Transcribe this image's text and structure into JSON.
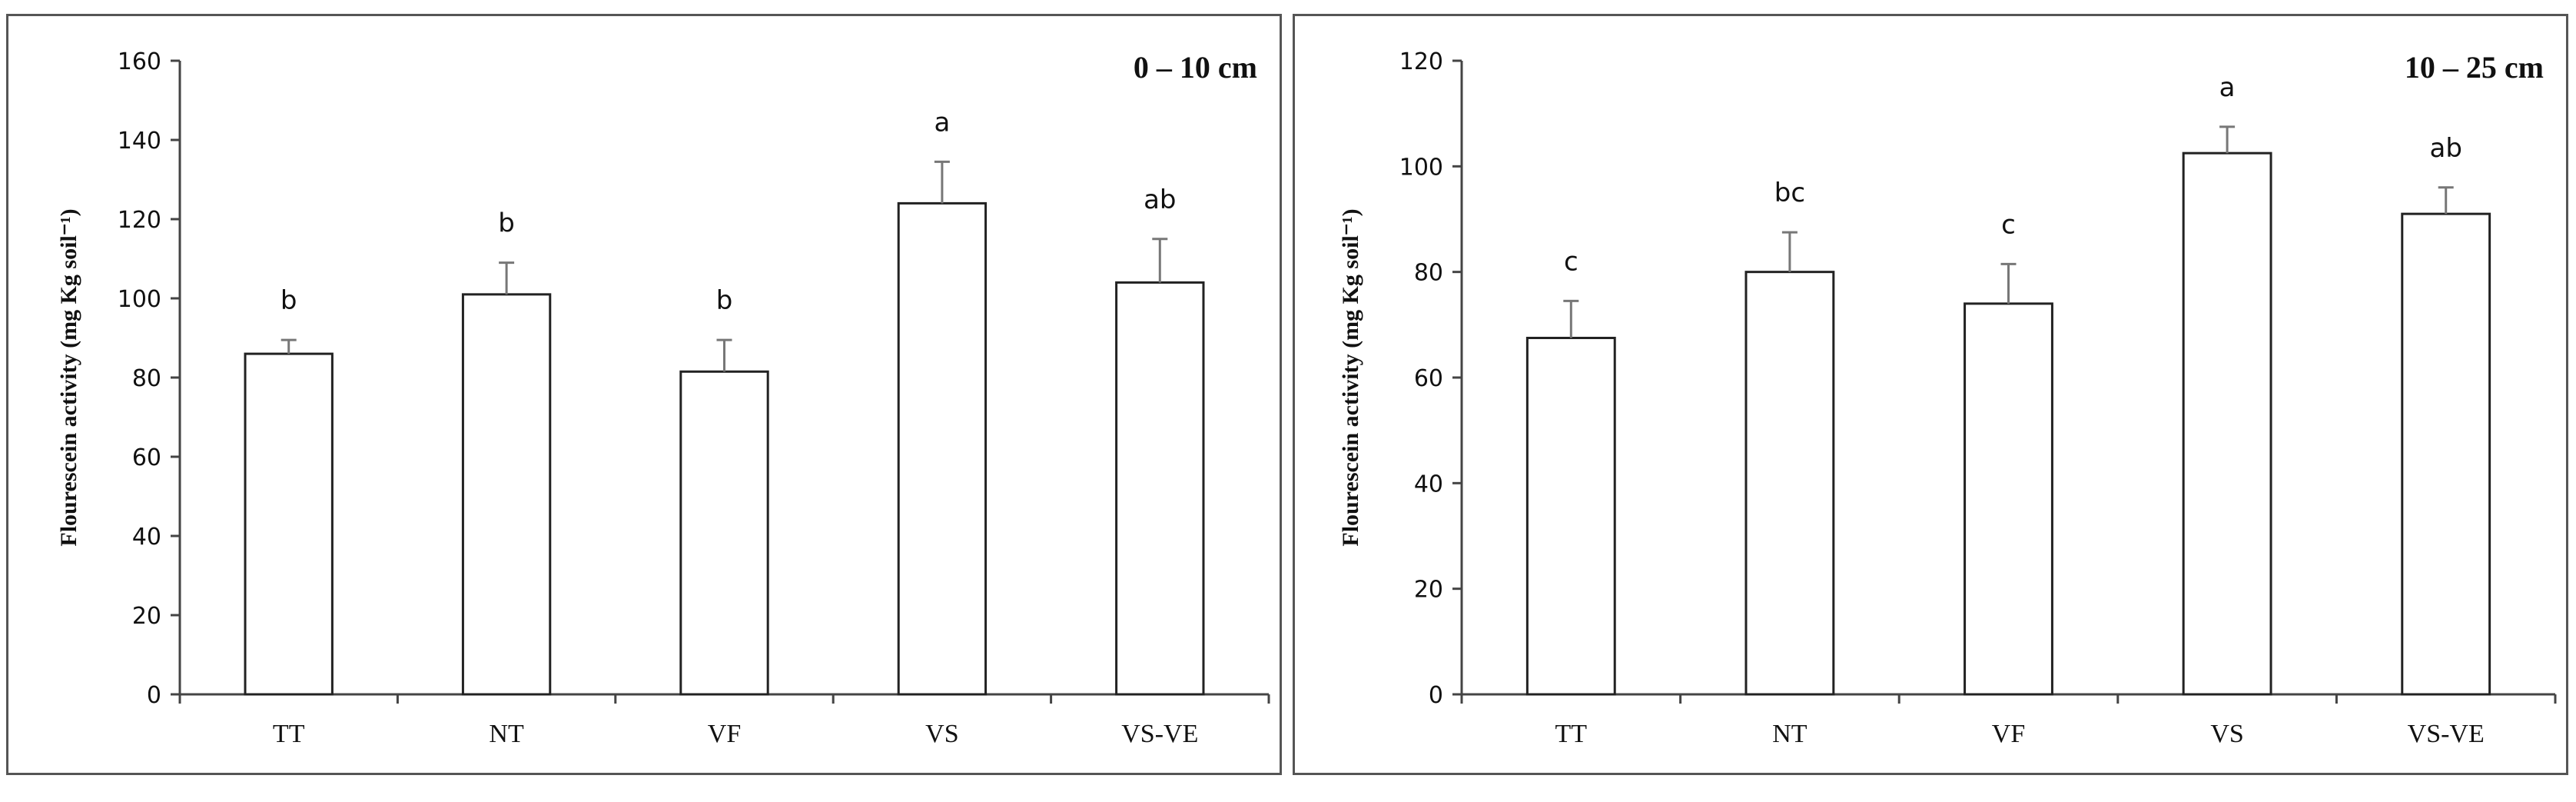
{
  "chart_data": [
    {
      "type": "bar",
      "title": "0 – 10 cm",
      "xlabel": "",
      "ylabel": "Flourescein activity (mg Kg soil⁻¹)",
      "ylim": [
        0,
        160
      ],
      "yticks": [
        0,
        20,
        40,
        60,
        80,
        100,
        120,
        140,
        160
      ],
      "categories": [
        "TT",
        "NT",
        "VF",
        "VS",
        "VS-VE"
      ],
      "values": [
        86,
        101,
        81.5,
        124,
        104
      ],
      "errors": [
        3.5,
        8,
        8,
        10.5,
        11
      ],
      "letters": [
        "b",
        "b",
        "b",
        "a",
        "ab"
      ]
    },
    {
      "type": "bar",
      "title": "10 – 25 cm",
      "xlabel": "",
      "ylabel": "Flourescein activity (mg Kg soil⁻¹)",
      "ylim": [
        0,
        120
      ],
      "yticks": [
        0,
        20,
        40,
        60,
        80,
        100,
        120
      ],
      "categories": [
        "TT",
        "NT",
        "VF",
        "VS",
        "VS-VE"
      ],
      "values": [
        67.5,
        80,
        74,
        102.5,
        91
      ],
      "errors": [
        7,
        7.5,
        7.5,
        5,
        5
      ],
      "letters": [
        "c",
        "bc",
        "c",
        "a",
        "ab"
      ]
    }
  ]
}
